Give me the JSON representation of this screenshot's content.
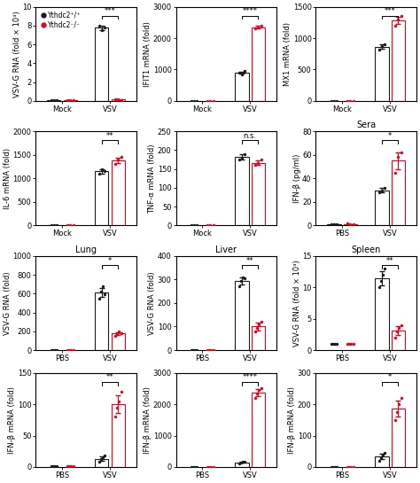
{
  "chart_data": [
    {
      "type": "bar",
      "ylabel": "VSV-G RNA (fold × 10³)",
      "categories": [
        "Mock",
        "VSV"
      ],
      "series": [
        {
          "name": "Ythdc2⁺/⁺",
          "color": "#1a1a1a",
          "values": [
            0.06,
            7.77
          ],
          "errors": [
            null,
            0.20548
          ],
          "points": [
            [
              0.05,
              0.08,
              0.05
            ],
            [
              8.0,
              7.5,
              7.8
            ]
          ]
        },
        {
          "name": "Ythdc2⁻/⁻",
          "color": "#e8001c",
          "values": [
            0.09,
            0.15
          ],
          "errors": [
            null,
            0.040825
          ],
          "points": [
            [
              0.12,
              0.08,
              0.06
            ],
            [
              0.2,
              0.15,
              0.1
            ]
          ]
        }
      ],
      "ylim": [
        0,
        10
      ],
      "yticks": [
        0,
        2,
        4,
        6,
        8,
        10
      ],
      "annotations": [
        {
          "text": "***",
          "category": "VSV"
        }
      ],
      "legend": "upper left"
    },
    {
      "type": "bar",
      "ylabel": "IFIT1 mRNA (fold)",
      "categories": [
        "Mock",
        "VSV"
      ],
      "series": [
        {
          "name": "Ythdc2⁺/⁺",
          "color": "#1a1a1a",
          "values": [
            0.05,
            900
          ],
          "errors": [
            null,
            40.825
          ],
          "points": [
            [
              0.05,
              0.05,
              0.05
            ],
            [
              900,
              850,
              950
            ]
          ]
        },
        {
          "name": "Ythdc2⁻/⁻",
          "color": "#e8001c",
          "values": [
            0.05,
            2350
          ],
          "errors": [
            null,
            40.825
          ],
          "points": [
            [
              0.1,
              0.05,
              0.05
            ],
            [
              2300,
              2350,
              2400
            ]
          ]
        }
      ],
      "ylim": [
        0,
        3000
      ],
      "yticks": [
        0,
        1000,
        2000,
        3000
      ],
      "annotations": [
        {
          "text": "****",
          "category": "VSV"
        }
      ]
    },
    {
      "type": "bar",
      "ylabel": "MX1 mRNA (fold)",
      "categories": [
        "Mock",
        "VSV"
      ],
      "series": [
        {
          "name": "Ythdc2⁺/⁺",
          "color": "#1a1a1a",
          "values": [
            0.05,
            863
          ],
          "errors": [
            null,
            32.998
          ],
          "points": [
            [
              0.05,
              0.05,
              0.05
            ],
            [
              820,
              870,
              900
            ]
          ]
        },
        {
          "name": "Ythdc2⁻/⁻",
          "color": "#e8001c",
          "values": [
            0.05,
            1283
          ],
          "errors": [
            null,
            62.361
          ],
          "points": [
            [
              0.1,
              0.05,
              0.05
            ],
            [
              1200,
              1300,
              1350
            ]
          ]
        }
      ],
      "ylim": [
        0,
        1500
      ],
      "yticks": [
        0,
        500,
        1000,
        1500
      ],
      "annotations": [
        {
          "text": "***",
          "category": "VSV"
        }
      ]
    },
    {
      "type": "bar",
      "ylabel": "IL-6 mRNA (fold)",
      "categories": [
        "Mock",
        "VSV"
      ],
      "series": [
        {
          "name": "Ythdc2⁺/⁺",
          "color": "#1a1a1a",
          "values": [
            0.05,
            1150
          ],
          "errors": [
            null,
            40.825
          ],
          "points": [
            [
              0.05,
              0.05,
              0.05
            ],
            [
              1100,
              1200,
              1150
            ]
          ]
        },
        {
          "name": "Ythdc2⁻/⁻",
          "color": "#e8001c",
          "values": [
            0.05,
            1383
          ],
          "errors": [
            null,
            62.361
          ],
          "points": [
            [
              0.1,
              0.05,
              0.05
            ],
            [
              1300,
              1400,
              1450
            ]
          ]
        }
      ],
      "ylim": [
        0,
        2000
      ],
      "yticks": [
        0,
        500,
        1000,
        1500,
        2000
      ],
      "annotations": [
        {
          "text": "**",
          "category": "VSV"
        }
      ]
    },
    {
      "type": "bar",
      "ylabel": "TNF-α mRNA (fold)",
      "categories": [
        "Mock",
        "VSV"
      ],
      "series": [
        {
          "name": "Ythdc2⁺/⁺",
          "color": "#1a1a1a",
          "values": [
            0.05,
            182
          ],
          "errors": [
            null,
            6.2361
          ],
          "points": [
            [
              0.05,
              0.05,
              0.05
            ],
            [
              175,
              180,
              190
            ]
          ]
        },
        {
          "name": "Ythdc2⁻/⁻",
          "color": "#e8001c",
          "values": [
            0.05,
            167
          ],
          "errors": [
            null,
            6.2361
          ],
          "points": [
            [
              0.1,
              0.05,
              0.05
            ],
            [
              160,
              165,
              175
            ]
          ]
        }
      ],
      "ylim": [
        0,
        250
      ],
      "yticks": [
        0,
        50,
        100,
        150,
        200,
        250
      ],
      "annotations": [
        {
          "text": "n.s.",
          "category": "VSV"
        }
      ]
    },
    {
      "type": "bar",
      "title": "Sera",
      "ylabel": "IFN-β (pg/ml)",
      "categories": [
        "PBS",
        "VSV"
      ],
      "series": [
        {
          "name": "Ythdc2⁺/⁺",
          "color": "#1a1a1a",
          "values": [
            1,
            30
          ],
          "errors": [
            null,
            1.633
          ],
          "points": [
            [
              1,
              1,
              1
            ],
            [
              28,
              30,
              32
            ]
          ]
        },
        {
          "name": "Ythdc2⁻/⁻",
          "color": "#e8001c",
          "values": [
            1,
            55
          ],
          "errors": [
            null,
            7.2572
          ],
          "points": [
            [
              2,
              1,
              1
            ],
            [
              45,
              58,
              62
            ]
          ]
        }
      ],
      "ylim": [
        0,
        80
      ],
      "yticks": [
        0,
        20,
        40,
        60,
        80
      ],
      "annotations": [
        {
          "text": "*",
          "category": "VSV"
        }
      ]
    },
    {
      "type": "bar",
      "title": "Lung",
      "ylabel": "VSV-G RNA (fold)",
      "categories": [
        "PBS",
        "VSV"
      ],
      "series": [
        {
          "name": "Ythdc2⁺/⁺",
          "color": "#1a1a1a",
          "values": [
            null,
            610
          ],
          "errors": [
            null,
            47.434
          ],
          "points": [
            [
              1,
              1,
              1,
              1
            ],
            [
              550,
              620,
              680,
              590
            ]
          ]
        },
        {
          "name": "Ythdc2⁻/⁻",
          "color": "#e8001c",
          "values": [
            null,
            175
          ],
          "errors": [
            null,
            18.028
          ],
          "points": [
            [
              1,
              1,
              1,
              1
            ],
            [
              150,
              170,
              200,
              180
            ]
          ]
        }
      ],
      "ylim": [
        0,
        1000
      ],
      "yticks": [
        0,
        200,
        400,
        600,
        800,
        1000
      ],
      "annotations": [
        {
          "text": "*",
          "category": "VSV"
        }
      ]
    },
    {
      "type": "bar",
      "title": "Liver",
      "ylabel": "VSV-G RNA (fold)",
      "categories": [
        "PBS",
        "VSV"
      ],
      "series": [
        {
          "name": "Ythdc2⁺/⁺",
          "color": "#1a1a1a",
          "values": [
            null,
            295
          ],
          "errors": [
            null,
            15.411
          ],
          "points": [
            [
              1,
              1,
              1,
              1
            ],
            [
              270,
              295,
              310,
              305
            ]
          ]
        },
        {
          "name": "Ythdc2⁻/⁻",
          "color": "#e8001c",
          "values": [
            null,
            100
          ],
          "errors": [
            null,
            15.156
          ],
          "points": [
            [
              1,
              1,
              1,
              1
            ],
            [
              80,
              95,
              110,
              120
            ]
          ]
        }
      ],
      "ylim": [
        0,
        400
      ],
      "yticks": [
        0,
        100,
        200,
        300,
        400
      ],
      "annotations": [
        {
          "text": "**",
          "category": "VSV"
        }
      ]
    },
    {
      "type": "bar",
      "title": "Spleen",
      "ylabel": "VSV-G RNA (fold × 10³)",
      "categories": [
        "PBS",
        "VSV"
      ],
      "series": [
        {
          "name": "Ythdc2⁺/⁺",
          "color": "#1a1a1a",
          "values": [
            null,
            11.5
          ],
          "errors": [
            null,
            1.118
          ],
          "points": [
            [
              1,
              1,
              1,
              1
            ],
            [
              10,
              11,
              12,
              13
            ]
          ]
        },
        {
          "name": "Ythdc2⁻/⁻",
          "color": "#e8001c",
          "values": [
            null,
            3.1
          ],
          "errors": [
            null,
            0.73951
          ],
          "points": [
            [
              1,
              1,
              1,
              1
            ],
            [
              2,
              3,
              3.5,
              4
            ]
          ]
        }
      ],
      "ylim": [
        0,
        15
      ],
      "yticks": [
        0,
        5,
        10,
        15
      ],
      "annotations": [
        {
          "text": "**",
          "category": "VSV"
        }
      ]
    },
    {
      "type": "bar",
      "ylabel": "IFN-β mRNA (fold)",
      "categories": [
        "PBS",
        "VSV"
      ],
      "series": [
        {
          "name": "Ythdc2⁺/⁺",
          "color": "#1a1a1a",
          "values": [
            null,
            13
          ],
          "errors": [
            null,
            3.6997
          ],
          "points": [
            [
              1,
              1,
              1,
              1
            ],
            [
              8,
              12,
              15,
              18
            ]
          ]
        },
        {
          "name": "Ythdc2⁻/⁻",
          "color": "#e8001c",
          "values": [
            null,
            100
          ],
          "errors": [
            null,
            14.577
          ],
          "points": [
            [
              1,
              1,
              1,
              1
            ],
            [
              80,
              95,
              105,
              120
            ]
          ]
        }
      ],
      "ylim": [
        0,
        150
      ],
      "yticks": [
        0,
        50,
        100,
        150
      ],
      "annotations": [
        {
          "text": "**",
          "category": "VSV"
        }
      ]
    },
    {
      "type": "bar",
      "ylabel": "IFN-β mRNA (fold)",
      "categories": [
        "PBS",
        "VSV"
      ],
      "series": [
        {
          "name": "Ythdc2⁺/⁺",
          "color": "#1a1a1a",
          "values": [
            null,
            150
          ],
          "errors": [
            null,
            18.708
          ],
          "points": [
            [
              1,
              1,
              1,
              1
            ],
            [
              120,
              150,
              170,
              160
            ]
          ]
        },
        {
          "name": "Ythdc2⁻/⁻",
          "color": "#e8001c",
          "values": [
            null,
            2375
          ],
          "errors": [
            null,
            114.56
          ],
          "points": [
            [
              1,
              1,
              1,
              1
            ],
            [
              2200,
              2350,
              2450,
              2500
            ]
          ]
        }
      ],
      "ylim": [
        0,
        3000
      ],
      "yticks": [
        0,
        1000,
        2000,
        3000
      ],
      "annotations": [
        {
          "text": "****",
          "category": "VSV"
        }
      ]
    },
    {
      "type": "bar",
      "ylabel": "IFN-β mRNA (fold)",
      "categories": [
        "PBS",
        "VSV"
      ],
      "series": [
        {
          "name": "Ythdc2⁺/⁺",
          "color": "#1a1a1a",
          "values": [
            null,
            34
          ],
          "errors": [
            null,
            9.6014
          ],
          "points": [
            [
              1,
              1,
              1,
              1
            ],
            [
              20,
              30,
              40,
              45
            ]
          ]
        },
        {
          "name": "Ythdc2⁻/⁻",
          "color": "#e8001c",
          "values": [
            null,
            186
          ],
          "errors": [
            null,
            26.309
          ],
          "points": [
            [
              1,
              1,
              1,
              1
            ],
            [
              150,
              175,
              200,
              220
            ]
          ]
        }
      ],
      "ylim": [
        0,
        300
      ],
      "yticks": [
        0,
        100,
        200,
        300
      ],
      "annotations": [
        {
          "text": "*",
          "category": "VSV"
        }
      ]
    }
  ]
}
